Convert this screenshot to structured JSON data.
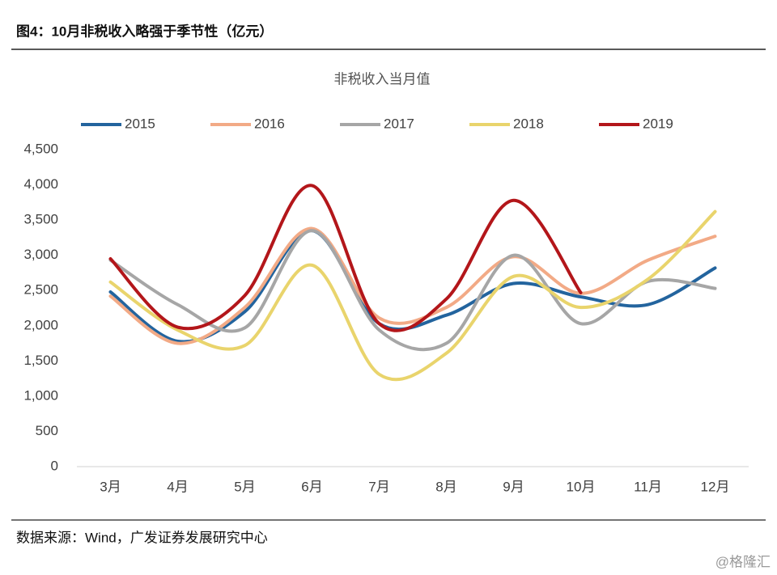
{
  "header": {
    "title": "图4：10月非税收入略强于季节性（亿元）"
  },
  "chart_data": {
    "type": "line",
    "title": "非税收入当月值",
    "categories": [
      "3月",
      "4月",
      "5月",
      "6月",
      "7月",
      "8月",
      "9月",
      "10月",
      "11月",
      "12月"
    ],
    "series": [
      {
        "name": "2015",
        "color": "#23649e",
        "values": [
          2480,
          1780,
          2200,
          3350,
          2030,
          2150,
          2600,
          2410,
          2300,
          2820
        ]
      },
      {
        "name": "2016",
        "color": "#f2aa86",
        "values": [
          2420,
          1750,
          2260,
          3380,
          2110,
          2260,
          2980,
          2460,
          2930,
          3270
        ]
      },
      {
        "name": "2017",
        "color": "#a6a6a6",
        "values": [
          2930,
          2300,
          1970,
          3350,
          1940,
          1750,
          3000,
          2030,
          2630,
          2530
        ]
      },
      {
        "name": "2018",
        "color": "#e9d46c",
        "values": [
          2620,
          1940,
          1720,
          2860,
          1310,
          1610,
          2700,
          2260,
          2660,
          3620
        ]
      },
      {
        "name": "2019",
        "color": "#b3161a",
        "values": [
          2950,
          1980,
          2430,
          3990,
          2030,
          2380,
          3780,
          2470,
          null,
          null
        ]
      }
    ],
    "ylim": [
      0,
      4500
    ],
    "yticks": [
      0,
      500,
      {
        "value": 1000,
        "label": "1,000"
      },
      {
        "value": 1500,
        "label": "1,500"
      },
      {
        "value": 2000,
        "label": "2,000"
      },
      {
        "value": 2500,
        "label": "2,500"
      },
      {
        "value": 3000,
        "label": "3,000"
      },
      {
        "value": 3500,
        "label": "3,500"
      },
      {
        "value": 4000,
        "label": "4,000"
      },
      {
        "value": 4500,
        "label": "4,500"
      }
    ],
    "grid": false,
    "legend": "top"
  },
  "footer": {
    "source": "数据来源：Wind，广发证券发展研究中心",
    "watermark": "@格隆汇"
  }
}
